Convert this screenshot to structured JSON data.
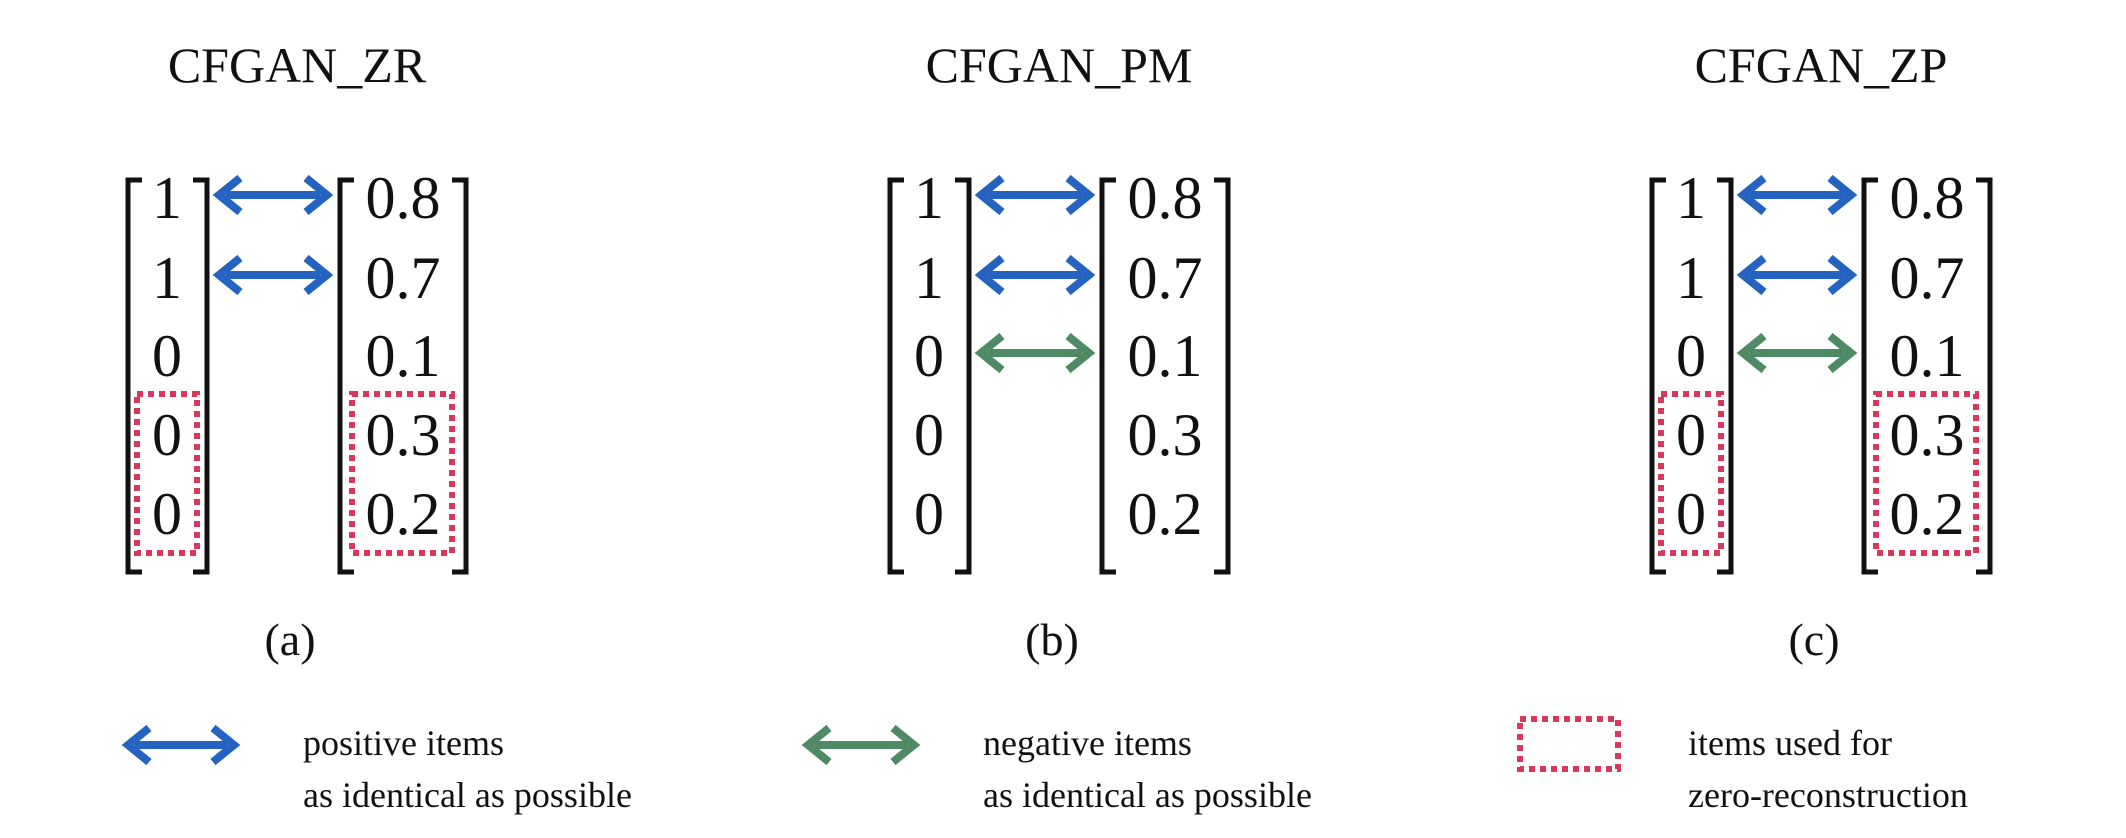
{
  "panels": [
    {
      "title": "CFGAN_ZR",
      "caption": "(a)",
      "left": [
        "1",
        "1",
        "0",
        "0",
        "0"
      ],
      "right": [
        "0.8",
        "0.7",
        "0.1",
        "0.3",
        "0.2"
      ],
      "arrows": [
        "positive",
        "positive",
        "none",
        "none",
        "none"
      ],
      "zero_reconstruction_rows": [
        3,
        4
      ]
    },
    {
      "title": "CFGAN_PM",
      "caption": "(b)",
      "left": [
        "1",
        "1",
        "0",
        "0",
        "0"
      ],
      "right": [
        "0.8",
        "0.7",
        "0.1",
        "0.3",
        "0.2"
      ],
      "arrows": [
        "positive",
        "positive",
        "negative",
        "none",
        "none"
      ],
      "zero_reconstruction_rows": []
    },
    {
      "title": "CFGAN_ZP",
      "caption": "(c)",
      "left": [
        "1",
        "1",
        "0",
        "0",
        "0"
      ],
      "right": [
        "0.8",
        "0.7",
        "0.1",
        "0.3",
        "0.2"
      ],
      "arrows": [
        "positive",
        "positive",
        "negative",
        "none",
        "none"
      ],
      "zero_reconstruction_rows": [
        3,
        4
      ]
    }
  ],
  "legend": [
    {
      "kind": "positive",
      "icon": "blue-double-arrow-icon",
      "line1": "positive items",
      "line2": "as identical as possible"
    },
    {
      "kind": "negative",
      "icon": "green-double-arrow-icon",
      "line1": "negative items",
      "line2": "as identical as possible"
    },
    {
      "kind": "zero",
      "icon": "dotted-box-icon",
      "line1": "items used for",
      "line2": "zero-reconstruction"
    }
  ],
  "colors": {
    "positive": "#2563c0",
    "negative": "#4e8a63",
    "zero_box": "#d8385c",
    "text": "#111111"
  }
}
